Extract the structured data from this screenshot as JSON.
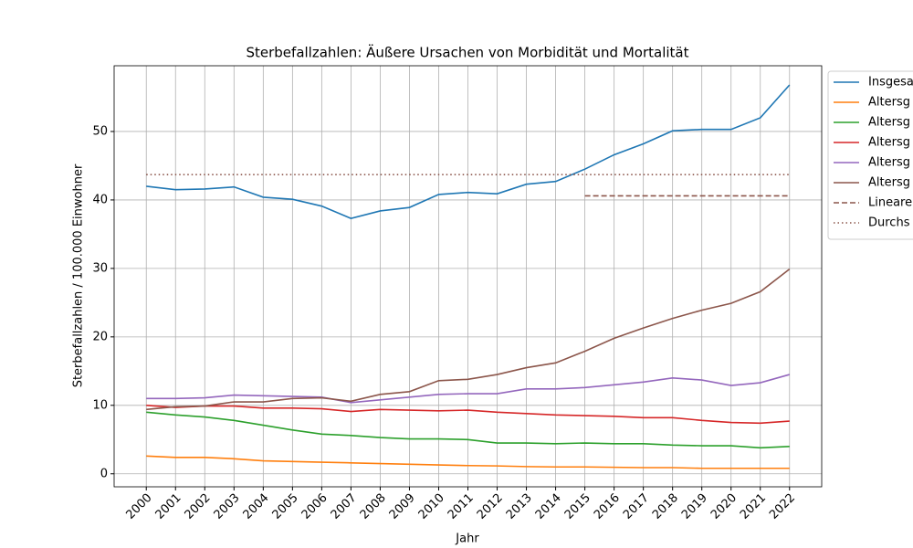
{
  "chart_data": {
    "type": "line",
    "title": "Sterbefallzahlen: Äußere Ursachen von Morbidität und Mortalität",
    "xlabel": "Jahr",
    "ylabel": "Sterbefallzahlen / 100.000 Einwohner",
    "x": [
      2000,
      2001,
      2002,
      2003,
      2004,
      2005,
      2006,
      2007,
      2008,
      2009,
      2010,
      2011,
      2012,
      2013,
      2014,
      2015,
      2016,
      2017,
      2018,
      2019,
      2020,
      2021,
      2022
    ],
    "xlim": [
      1998.9,
      2023.1
    ],
    "xticks": [
      2000,
      2001,
      2002,
      2003,
      2004,
      2005,
      2006,
      2007,
      2008,
      2009,
      2010,
      2011,
      2012,
      2013,
      2014,
      2015,
      2016,
      2017,
      2018,
      2019,
      2020,
      2021,
      2022
    ],
    "ylim": [
      -1.9,
      59.6
    ],
    "yticks": [
      0,
      10,
      20,
      30,
      40,
      50
    ],
    "grid": true,
    "legend": "outside upper right",
    "series": [
      {
        "name": "Insgesa",
        "color": "#1f77b4",
        "style": "solid",
        "values": [
          42.0,
          41.5,
          41.6,
          41.9,
          40.4,
          40.1,
          39.1,
          37.3,
          38.4,
          38.9,
          40.8,
          41.1,
          40.9,
          42.3,
          42.7,
          44.5,
          46.6,
          48.2,
          50.1,
          50.3,
          50.3,
          52.0,
          56.8
        ]
      },
      {
        "name": "Altersg",
        "color": "#ff7f0e",
        "style": "solid",
        "values": [
          2.6,
          2.4,
          2.4,
          2.2,
          1.9,
          1.8,
          1.7,
          1.6,
          1.5,
          1.4,
          1.3,
          1.2,
          1.15,
          1.05,
          1.0,
          1.0,
          0.95,
          0.9,
          0.9,
          0.8,
          0.8,
          0.8,
          0.8
        ]
      },
      {
        "name": "Altersg",
        "color": "#2ca02c",
        "style": "solid",
        "values": [
          9.0,
          8.6,
          8.3,
          7.8,
          7.1,
          6.4,
          5.8,
          5.6,
          5.3,
          5.1,
          5.1,
          5.0,
          4.5,
          4.5,
          4.4,
          4.5,
          4.4,
          4.4,
          4.2,
          4.1,
          4.1,
          3.8,
          4.0
        ]
      },
      {
        "name": "Altersg",
        "color": "#d62728",
        "style": "solid",
        "values": [
          10.0,
          9.7,
          9.9,
          9.9,
          9.6,
          9.6,
          9.5,
          9.1,
          9.4,
          9.3,
          9.2,
          9.3,
          9.0,
          8.8,
          8.6,
          8.5,
          8.4,
          8.2,
          8.2,
          7.8,
          7.5,
          7.4,
          7.7
        ]
      },
      {
        "name": "Altersg",
        "color": "#9467bd",
        "style": "solid",
        "values": [
          11.0,
          11.0,
          11.1,
          11.5,
          11.4,
          11.3,
          11.2,
          10.4,
          10.8,
          11.2,
          11.6,
          11.7,
          11.7,
          12.4,
          12.4,
          12.6,
          13.0,
          13.4,
          14.0,
          13.7,
          12.9,
          13.3,
          14.5
        ]
      },
      {
        "name": "Altersg",
        "color": "#8c564b",
        "style": "solid",
        "values": [
          9.4,
          9.8,
          9.9,
          10.5,
          10.5,
          11.0,
          11.1,
          10.6,
          11.6,
          12.0,
          13.6,
          13.8,
          14.5,
          15.5,
          16.2,
          17.9,
          19.8,
          21.3,
          22.7,
          23.9,
          24.9,
          26.6,
          29.9
        ]
      },
      {
        "name": "Lineare",
        "color": "#8c564b",
        "style": "dashed",
        "values": [
          null,
          null,
          null,
          null,
          null,
          null,
          null,
          null,
          null,
          null,
          null,
          null,
          null,
          null,
          null,
          40.6,
          40.6,
          40.6,
          40.6,
          40.6,
          40.6,
          40.6,
          40.6
        ]
      },
      {
        "name": "Durchs",
        "color": "#8c564b",
        "style": "dotted",
        "values": [
          43.7,
          43.7,
          43.7,
          43.7,
          43.7,
          43.7,
          43.7,
          43.7,
          43.7,
          43.7,
          43.7,
          43.7,
          43.7,
          43.7,
          43.7,
          43.7,
          43.7,
          43.7,
          43.7,
          43.7,
          43.7,
          43.7,
          43.7
        ]
      }
    ]
  }
}
